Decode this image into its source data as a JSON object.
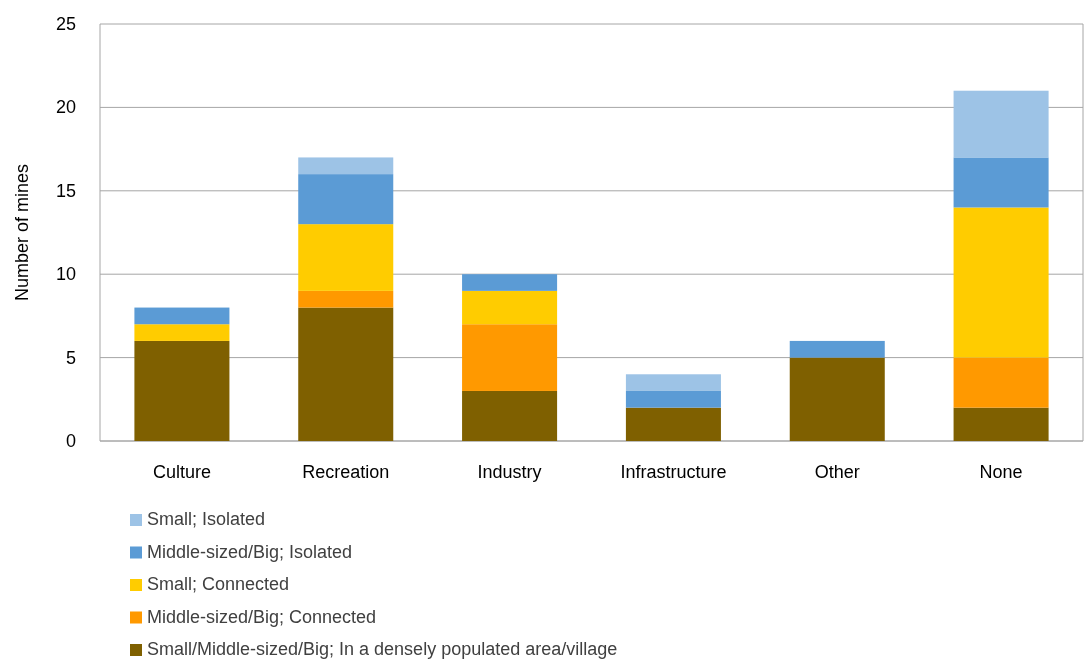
{
  "chart_data": {
    "type": "bar",
    "stacked": true,
    "ylabel": "Number of mines",
    "categories": [
      "Culture",
      "Recreation",
      "Industry",
      "Infrastructure",
      "Other",
      "None"
    ],
    "series": [
      {
        "name": "Small/Middle-sized/Big; In a densely populated area/village",
        "color": "#7f6000",
        "values": [
          6,
          8,
          3,
          2,
          5,
          2
        ]
      },
      {
        "name": "Middle-sized/Big; Connected",
        "color": "#ff9900",
        "values": [
          0,
          1,
          4,
          0,
          0,
          3
        ]
      },
      {
        "name": "Small; Connected",
        "color": "#ffcc00",
        "values": [
          1,
          4,
          2,
          0,
          0,
          9
        ]
      },
      {
        "name": "Middle-sized/Big; Isolated",
        "color": "#5b9bd5",
        "values": [
          1,
          3,
          1,
          1,
          1,
          3
        ]
      },
      {
        "name": "Small; Isolated",
        "color": "#9dc3e6",
        "values": [
          0,
          1,
          0,
          1,
          0,
          4
        ]
      }
    ],
    "ylim": [
      0,
      25
    ],
    "yticks": [
      0,
      5,
      10,
      15,
      20,
      25
    ],
    "grid": "y",
    "legend": "bottom"
  }
}
